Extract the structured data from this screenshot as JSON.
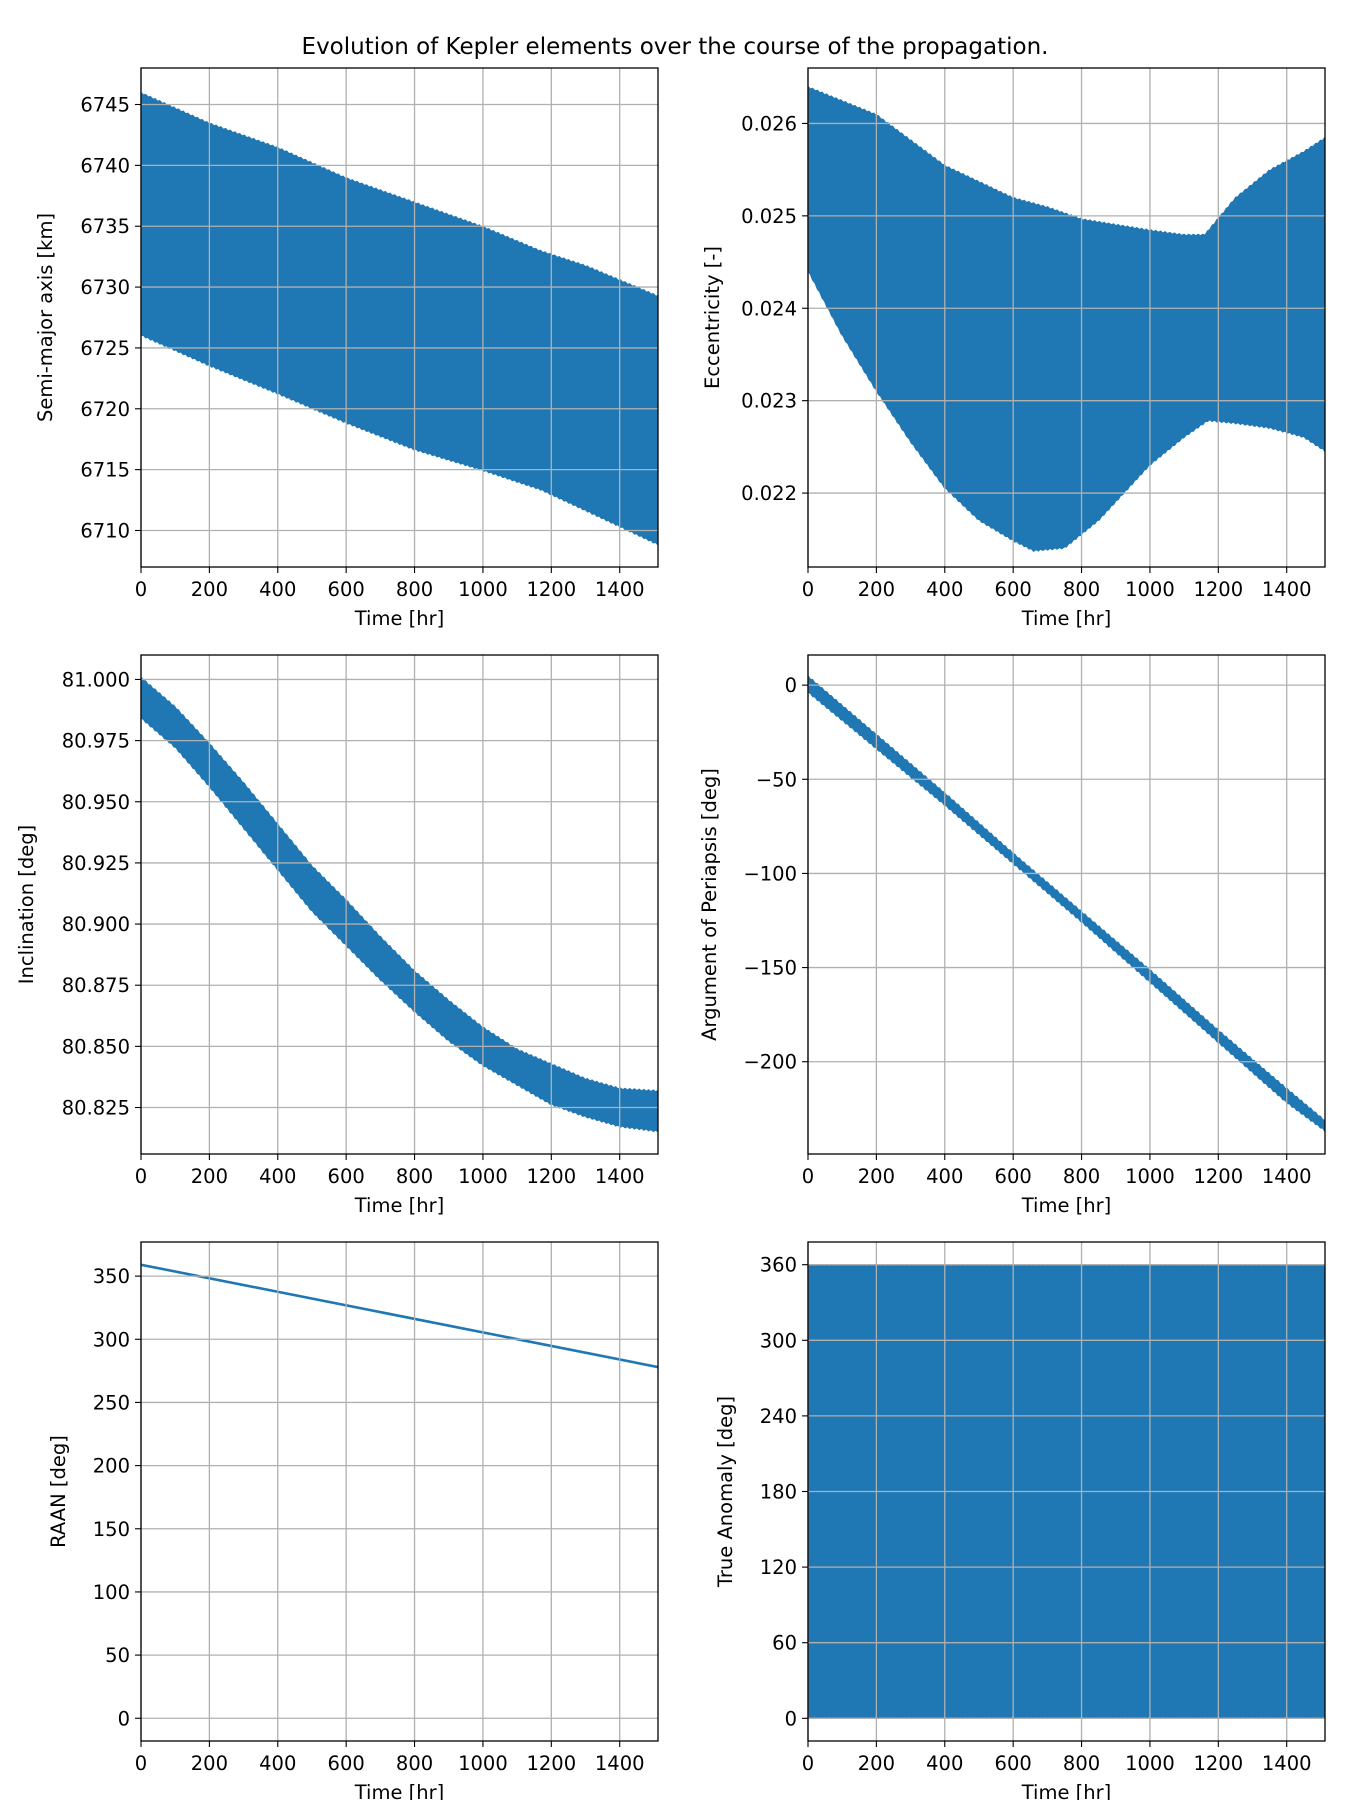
{
  "figure": {
    "title": "Evolution of Kepler elements over the course of the propagation.",
    "series_color": "#1f77b4",
    "grid_color": "#b0b0b0"
  },
  "chart_data": [
    {
      "type": "area",
      "xlabel": "Time [hr]",
      "ylabel": "Semi-major axis [km]",
      "xlim": [
        0,
        1512
      ],
      "ylim": [
        6707,
        6748
      ],
      "xticks": [
        0,
        200,
        400,
        600,
        800,
        1000,
        1200,
        1400
      ],
      "yticks": [
        6710,
        6715,
        6720,
        6725,
        6730,
        6735,
        6740,
        6745
      ],
      "ytick_decimals": 0,
      "grid": true,
      "upper": {
        "x": [
          0,
          200,
          400,
          600,
          800,
          1000,
          1170,
          1300,
          1512
        ],
        "y": [
          6746,
          6743.5,
          6741.5,
          6739,
          6737,
          6735,
          6733,
          6731.8,
          6729.3
        ]
      },
      "lower": {
        "x": [
          0,
          200,
          400,
          600,
          800,
          1000,
          1170,
          1300,
          1512
        ],
        "y": [
          6726,
          6723.5,
          6721.2,
          6718.8,
          6716.6,
          6714.9,
          6713.3,
          6711.6,
          6708.8
        ]
      }
    },
    {
      "type": "area",
      "xlabel": "Time [hr]",
      "ylabel": "Eccentricity [-]",
      "xlim": [
        0,
        1512
      ],
      "ylim": [
        0.0212,
        0.0266
      ],
      "xticks": [
        0,
        200,
        400,
        600,
        800,
        1000,
        1200,
        1400
      ],
      "yticks": [
        0.022,
        0.023,
        0.024,
        0.025,
        0.026
      ],
      "ytick_decimals": 3,
      "grid": true,
      "upper": {
        "x": [
          0,
          200,
          400,
          600,
          700,
          800,
          1000,
          1100,
          1160,
          1250,
          1350,
          1450,
          1512
        ],
        "y": [
          0.0264,
          0.0261,
          0.02555,
          0.0252,
          0.0251,
          0.02497,
          0.02485,
          0.0248,
          0.0248,
          0.0252,
          0.0255,
          0.0257,
          0.02585
        ]
      },
      "lower": {
        "x": [
          0,
          100,
          200,
          300,
          400,
          500,
          600,
          660,
          750,
          850,
          1000,
          1100,
          1170,
          1250,
          1350,
          1450,
          1512
        ],
        "y": [
          0.0244,
          0.0237,
          0.0231,
          0.02255,
          0.02205,
          0.0217,
          0.02148,
          0.02137,
          0.0214,
          0.0217,
          0.0223,
          0.0226,
          0.02278,
          0.02275,
          0.0227,
          0.0226,
          0.02245
        ]
      }
    },
    {
      "type": "area",
      "xlabel": "Time [hr]",
      "ylabel": "Inclination [deg]",
      "xlim": [
        0,
        1512
      ],
      "ylim": [
        80.806,
        81.01
      ],
      "xticks": [
        0,
        200,
        400,
        600,
        800,
        1000,
        1200,
        1400
      ],
      "yticks": [
        80.825,
        80.85,
        80.875,
        80.9,
        80.925,
        80.95,
        80.975,
        81.0
      ],
      "ytick_decimals": 3,
      "grid": true,
      "upper": {
        "x": [
          0,
          100,
          200,
          300,
          400,
          500,
          600,
          700,
          800,
          900,
          1000,
          1100,
          1200,
          1300,
          1400,
          1512
        ],
        "y": [
          81.001,
          80.989,
          80.974,
          80.958,
          80.941,
          80.924,
          80.91,
          80.895,
          80.881,
          80.869,
          80.858,
          80.849,
          80.843,
          80.837,
          80.833,
          80.832
        ]
      },
      "lower": {
        "x": [
          0,
          100,
          200,
          300,
          400,
          500,
          600,
          700,
          800,
          900,
          1000,
          1100,
          1200,
          1300,
          1400,
          1512
        ],
        "y": [
          80.984,
          80.972,
          80.956,
          80.939,
          80.922,
          80.905,
          80.891,
          80.877,
          80.864,
          80.852,
          80.842,
          80.834,
          80.826,
          80.821,
          80.817,
          80.815
        ]
      }
    },
    {
      "type": "area",
      "xlabel": "Time [hr]",
      "ylabel": "Argument of Periapsis [deg]",
      "xlim": [
        0,
        1512
      ],
      "ylim": [
        -249,
        16
      ],
      "xticks": [
        0,
        200,
        400,
        600,
        800,
        1000,
        1200,
        1400
      ],
      "yticks": [
        -200,
        -150,
        -100,
        -50,
        0
      ],
      "ytick_decimals": 0,
      "grid": true,
      "upper": {
        "x": [
          0,
          200,
          400,
          600,
          800,
          1000,
          1200,
          1400,
          1512
        ],
        "y": [
          5,
          -26,
          -57,
          -89,
          -120,
          -151,
          -183,
          -214,
          -231
        ]
      },
      "lower": {
        "x": [
          0,
          200,
          400,
          600,
          800,
          1000,
          1200,
          1400,
          1512
        ],
        "y": [
          -4,
          -34,
          -64,
          -95,
          -126,
          -158,
          -190,
          -222,
          -237
        ]
      }
    },
    {
      "type": "line",
      "xlabel": "Time [hr]",
      "ylabel": "RAAN [deg]",
      "xlim": [
        0,
        1512
      ],
      "ylim": [
        -18,
        377
      ],
      "xticks": [
        0,
        200,
        400,
        600,
        800,
        1000,
        1200,
        1400
      ],
      "yticks": [
        0,
        50,
        100,
        150,
        200,
        250,
        300,
        350
      ],
      "ytick_decimals": 0,
      "grid": true,
      "x": [
        0,
        1512
      ],
      "y": [
        359,
        278
      ]
    },
    {
      "type": "area",
      "xlabel": "Time [hr]",
      "ylabel": "True Anomaly [deg]",
      "xlim": [
        0,
        1512
      ],
      "ylim": [
        -18,
        378
      ],
      "xticks": [
        0,
        200,
        400,
        600,
        800,
        1000,
        1200,
        1400
      ],
      "yticks": [
        0,
        60,
        120,
        180,
        240,
        300,
        360
      ],
      "ytick_decimals": 0,
      "grid": true,
      "upper": {
        "x": [
          0,
          1512
        ],
        "y": [
          360,
          360
        ]
      },
      "lower": {
        "x": [
          0,
          1512
        ],
        "y": [
          0,
          0
        ]
      }
    }
  ]
}
